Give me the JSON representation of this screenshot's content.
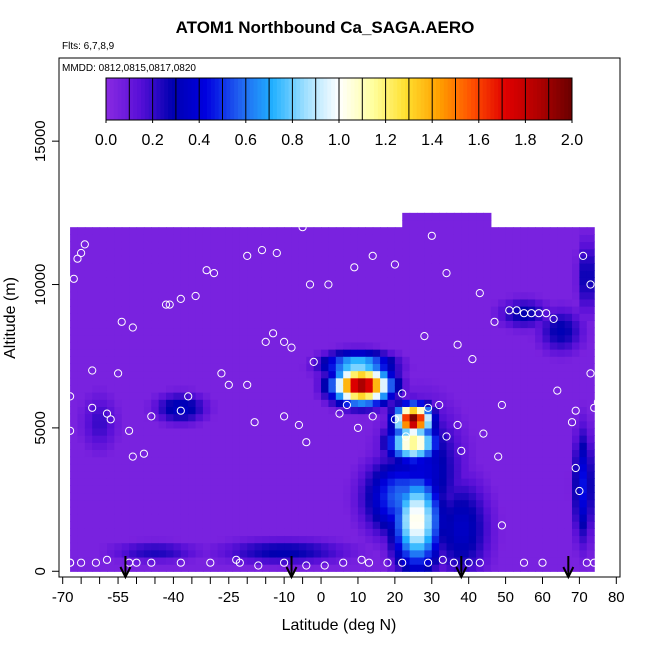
{
  "chart_data": {
    "type": "heatmap",
    "title": "ATOM1 Northbound Ca_SAGA.AERO",
    "flights_note": "Flts: 6,7,8,9",
    "mmdd_note": "MMDD: 0812,0815,0817,0820",
    "xlabel": "Latitude (deg N)",
    "ylabel": "Altitude (m)",
    "xlim": [
      -71,
      81
    ],
    "ylim": [
      -200,
      17900
    ],
    "x_ticks": [
      -70,
      -55,
      -40,
      -25,
      -10,
      0,
      10,
      20,
      30,
      40,
      50,
      60,
      70,
      80
    ],
    "x_minor_ticks": [
      -65,
      -60,
      -50,
      -45,
      -35,
      -30,
      -20,
      -15,
      -5
    ],
    "x_tick_labels": [
      "-70",
      "-55",
      "-40",
      "-25",
      "-10",
      "0",
      "10",
      "20",
      "30",
      "40",
      "50",
      "60",
      "70",
      "80"
    ],
    "y_ticks": [
      0,
      5000,
      10000,
      15000
    ],
    "y_tick_labels": [
      "0",
      "5000",
      "10000",
      "15000"
    ],
    "colorbar": {
      "range": [
        0,
        2.0
      ],
      "ticks": [
        0.0,
        0.2,
        0.4,
        0.6,
        0.8,
        1.0,
        1.2,
        1.4,
        1.6,
        1.8,
        2.0
      ],
      "tick_labels": [
        "0.0",
        "0.2",
        "0.4",
        "0.6",
        "0.8",
        "1.0",
        "1.2",
        "1.4",
        "1.6",
        "1.8",
        "2.0"
      ],
      "colors": [
        "#8a2be2",
        "#5a10d8",
        "#0000b0",
        "#0000e0",
        "#2060f0",
        "#20b0ff",
        "#a0e0ff",
        "#ffffff",
        "#ffffa0",
        "#ffe030",
        "#ffa000",
        "#ff5000",
        "#e00000",
        "#b00000",
        "#6a0000"
      ]
    },
    "background_value": 0.05,
    "coverage": [
      {
        "x0": -68,
        "x1": 75,
        "y0": 0,
        "y1": 11900
      },
      {
        "x0": 22,
        "x1": 47,
        "y0": 11900,
        "y1": 12500
      },
      {
        "x0": -68,
        "x1": -66,
        "y0": 10000,
        "y1": 11000
      }
    ],
    "plumes": [
      {
        "x": 11,
        "y": 6500,
        "rx": 8,
        "ry": 650,
        "v": 1.95
      },
      {
        "x": 10,
        "y": 7200,
        "rx": 10,
        "ry": 500,
        "v": 0.85
      },
      {
        "x": 25,
        "y": 5300,
        "rx": 5,
        "ry": 550,
        "v": 2.0
      },
      {
        "x": 25,
        "y": 4500,
        "rx": 7,
        "ry": 700,
        "v": 1.2
      },
      {
        "x": 26,
        "y": 1800,
        "rx": 7,
        "ry": 1800,
        "v": 1.05
      },
      {
        "x": 22,
        "y": 2600,
        "rx": 11,
        "ry": 1500,
        "v": 0.6
      },
      {
        "x": 27,
        "y": 3500,
        "rx": 12,
        "ry": 2500,
        "v": 0.4
      },
      {
        "x": 38,
        "y": 1500,
        "rx": 9,
        "ry": 2000,
        "v": 0.35
      },
      {
        "x": -38,
        "y": 5700,
        "rx": 8,
        "ry": 600,
        "v": 0.35
      },
      {
        "x": 71,
        "y": 3000,
        "rx": 3,
        "ry": 2200,
        "v": 0.45
      },
      {
        "x": 65,
        "y": 8400,
        "rx": 7,
        "ry": 900,
        "v": 0.3
      },
      {
        "x": -10,
        "y": 700,
        "rx": 20,
        "ry": 500,
        "v": 0.3
      },
      {
        "x": -45,
        "y": 700,
        "rx": 14,
        "ry": 400,
        "v": 0.25
      },
      {
        "x": -60,
        "y": 5200,
        "rx": 6,
        "ry": 1200,
        "v": 0.2
      },
      {
        "x": 55,
        "y": 9000,
        "rx": 8,
        "ry": 600,
        "v": 0.3
      },
      {
        "x": 72,
        "y": 10300,
        "rx": 3,
        "ry": 1500,
        "v": 0.3
      }
    ],
    "samples": [
      [
        -68,
        300
      ],
      [
        -68,
        4900
      ],
      [
        -68,
        6100
      ],
      [
        -67,
        10200
      ],
      [
        -66,
        10900
      ],
      [
        -65,
        11100
      ],
      [
        -64,
        11400
      ],
      [
        -62,
        5700
      ],
      [
        -62,
        7000
      ],
      [
        -58,
        5500
      ],
      [
        -57,
        5300
      ],
      [
        -55,
        6900
      ],
      [
        -54,
        8700
      ],
      [
        -51,
        8500
      ],
      [
        -51,
        4000
      ],
      [
        -52,
        4900
      ],
      [
        -48,
        4100
      ],
      [
        -46,
        5400
      ],
      [
        -42,
        9300
      ],
      [
        -41,
        9300
      ],
      [
        -38,
        9500
      ],
      [
        -34,
        9600
      ],
      [
        -38,
        5600
      ],
      [
        -36,
        6100
      ],
      [
        -31,
        10500
      ],
      [
        -29,
        10400
      ],
      [
        -27,
        6900
      ],
      [
        -25,
        6500
      ],
      [
        -20,
        11000
      ],
      [
        -16,
        11200
      ],
      [
        -12,
        11100
      ],
      [
        -20,
        6500
      ],
      [
        -18,
        5200
      ],
      [
        -15,
        8000
      ],
      [
        -13,
        8300
      ],
      [
        -10,
        8000
      ],
      [
        -10,
        5400
      ],
      [
        -8,
        7800
      ],
      [
        -5,
        12000
      ],
      [
        -6,
        5100
      ],
      [
        -3,
        10000
      ],
      [
        -4,
        4500
      ],
      [
        -2,
        7300
      ],
      [
        2,
        10000
      ],
      [
        5,
        5500
      ],
      [
        9,
        10600
      ],
      [
        7,
        5800
      ],
      [
        10,
        5000
      ],
      [
        14,
        11000
      ],
      [
        14,
        5400
      ],
      [
        20,
        10700
      ],
      [
        20,
        5300
      ],
      [
        22,
        6200
      ],
      [
        23,
        4700
      ],
      [
        28,
        8200
      ],
      [
        29,
        5700
      ],
      [
        30,
        11700
      ],
      [
        32,
        5800
      ],
      [
        34,
        10400
      ],
      [
        34,
        4700
      ],
      [
        37,
        7900
      ],
      [
        37,
        5100
      ],
      [
        38,
        4200
      ],
      [
        41,
        7400
      ],
      [
        43,
        9700
      ],
      [
        44,
        4800
      ],
      [
        47,
        8700
      ],
      [
        48,
        4000
      ],
      [
        49,
        5800
      ],
      [
        49,
        1600
      ],
      [
        51,
        9100
      ],
      [
        53,
        9100
      ],
      [
        55,
        9000
      ],
      [
        57,
        9000
      ],
      [
        59,
        9000
      ],
      [
        61,
        9000
      ],
      [
        63,
        8800
      ],
      [
        64,
        6300
      ],
      [
        68,
        5200
      ],
      [
        69,
        5600
      ],
      [
        69,
        3600
      ],
      [
        70,
        2800
      ],
      [
        71,
        11000
      ],
      [
        73,
        10000
      ],
      [
        73,
        6900
      ],
      [
        74,
        5700
      ],
      [
        75,
        5900
      ],
      [
        76,
        11900
      ],
      [
        78,
        10700
      ],
      [
        79,
        6400
      ],
      [
        80,
        6000
      ],
      [
        77,
        2100
      ],
      [
        76,
        1300
      ],
      [
        77,
        700
      ],
      [
        79,
        400
      ],
      [
        80,
        700
      ],
      [
        -68,
        300
      ],
      [
        -65,
        300
      ],
      [
        -61,
        300
      ],
      [
        -58,
        400
      ],
      [
        -52,
        300
      ],
      [
        -50,
        300
      ],
      [
        -46,
        300
      ],
      [
        -38,
        300
      ],
      [
        -30,
        300
      ],
      [
        -23,
        400
      ],
      [
        -22,
        300
      ],
      [
        -17,
        200
      ],
      [
        -10,
        300
      ],
      [
        -4,
        200
      ],
      [
        1,
        200
      ],
      [
        6,
        300
      ],
      [
        11,
        400
      ],
      [
        13,
        300
      ],
      [
        18,
        300
      ],
      [
        22,
        300
      ],
      [
        29,
        300
      ],
      [
        33,
        400
      ],
      [
        36,
        300
      ],
      [
        40,
        300
      ],
      [
        43,
        300
      ],
      [
        55,
        300
      ],
      [
        60,
        300
      ],
      [
        72,
        300
      ],
      [
        74,
        300
      ]
    ],
    "arrows_x": [
      -53,
      -8,
      38,
      67
    ]
  }
}
